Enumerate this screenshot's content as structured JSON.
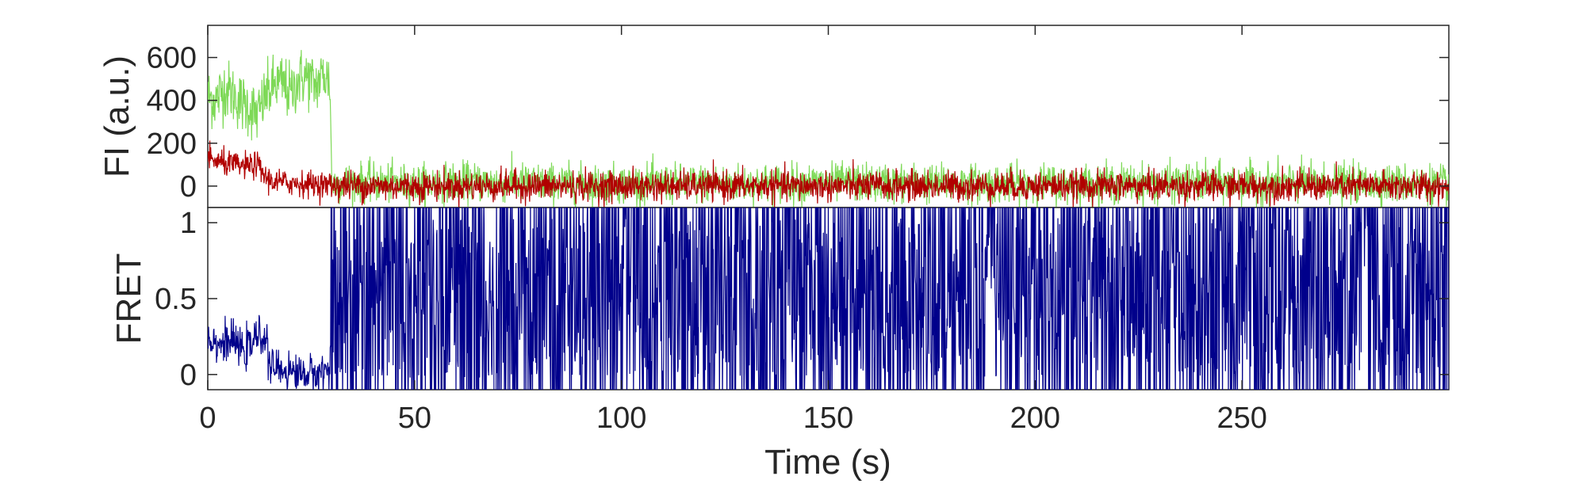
{
  "chart_data": [
    {
      "type": "line",
      "ylabel": "FI (a.u.)",
      "xlabel": "",
      "xlim": [
        0,
        300
      ],
      "ylim": [
        -100,
        750
      ],
      "yticks": [
        0,
        200,
        400,
        600
      ],
      "ytick_labels": [
        "0",
        "200",
        "400",
        "600"
      ],
      "series": [
        {
          "color": "#7ed957",
          "x": [
            0,
            2,
            4,
            6,
            8,
            10,
            12,
            14,
            16,
            18,
            20,
            22,
            24,
            26,
            28,
            29.5,
            30,
            35,
            40,
            50,
            60,
            80,
            100,
            150,
            200,
            250,
            300
          ],
          "values": [
            420,
            400,
            460,
            430,
            390,
            370,
            330,
            420,
            470,
            480,
            430,
            500,
            510,
            470,
            520,
            490,
            10,
            20,
            15,
            10,
            20,
            15,
            10,
            15,
            10,
            15,
            10
          ],
          "noise_after": 45,
          "noise_before": 70
        },
        {
          "color": "#b10000",
          "x": [
            0,
            3,
            6,
            9,
            12,
            14,
            16,
            20,
            25,
            30,
            40,
            60,
            100,
            150,
            200,
            250,
            300
          ],
          "values": [
            130,
            110,
            100,
            90,
            100,
            40,
            20,
            15,
            10,
            5,
            0,
            0,
            0,
            0,
            0,
            0,
            0
          ],
          "noise_after": 35,
          "noise_before": 30
        }
      ]
    },
    {
      "type": "line",
      "ylabel": "FRET",
      "xlabel": "Time (s)",
      "xlim": [
        0,
        300
      ],
      "ylim": [
        -0.1,
        1.1
      ],
      "yticks": [
        0,
        0.5,
        1
      ],
      "ytick_labels": [
        "0",
        "0.5",
        "1"
      ],
      "xticks": [
        0,
        50,
        100,
        150,
        200,
        250
      ],
      "xtick_labels": [
        "0",
        "50",
        "100",
        "150",
        "200",
        "250"
      ],
      "series": [
        {
          "color": "#00008b",
          "x": [
            0,
            3,
            6,
            9,
            12,
            14,
            15,
            20,
            25,
            29.5,
            30,
            300
          ],
          "values": [
            0.25,
            0.2,
            0.22,
            0.15,
            0.25,
            0.25,
            0.05,
            0.02,
            0.0,
            0.03,
            0.5,
            0.5
          ],
          "noise_before": 0.06,
          "after_30s": "rapid 0–1 fluctuation"
        }
      ]
    }
  ]
}
